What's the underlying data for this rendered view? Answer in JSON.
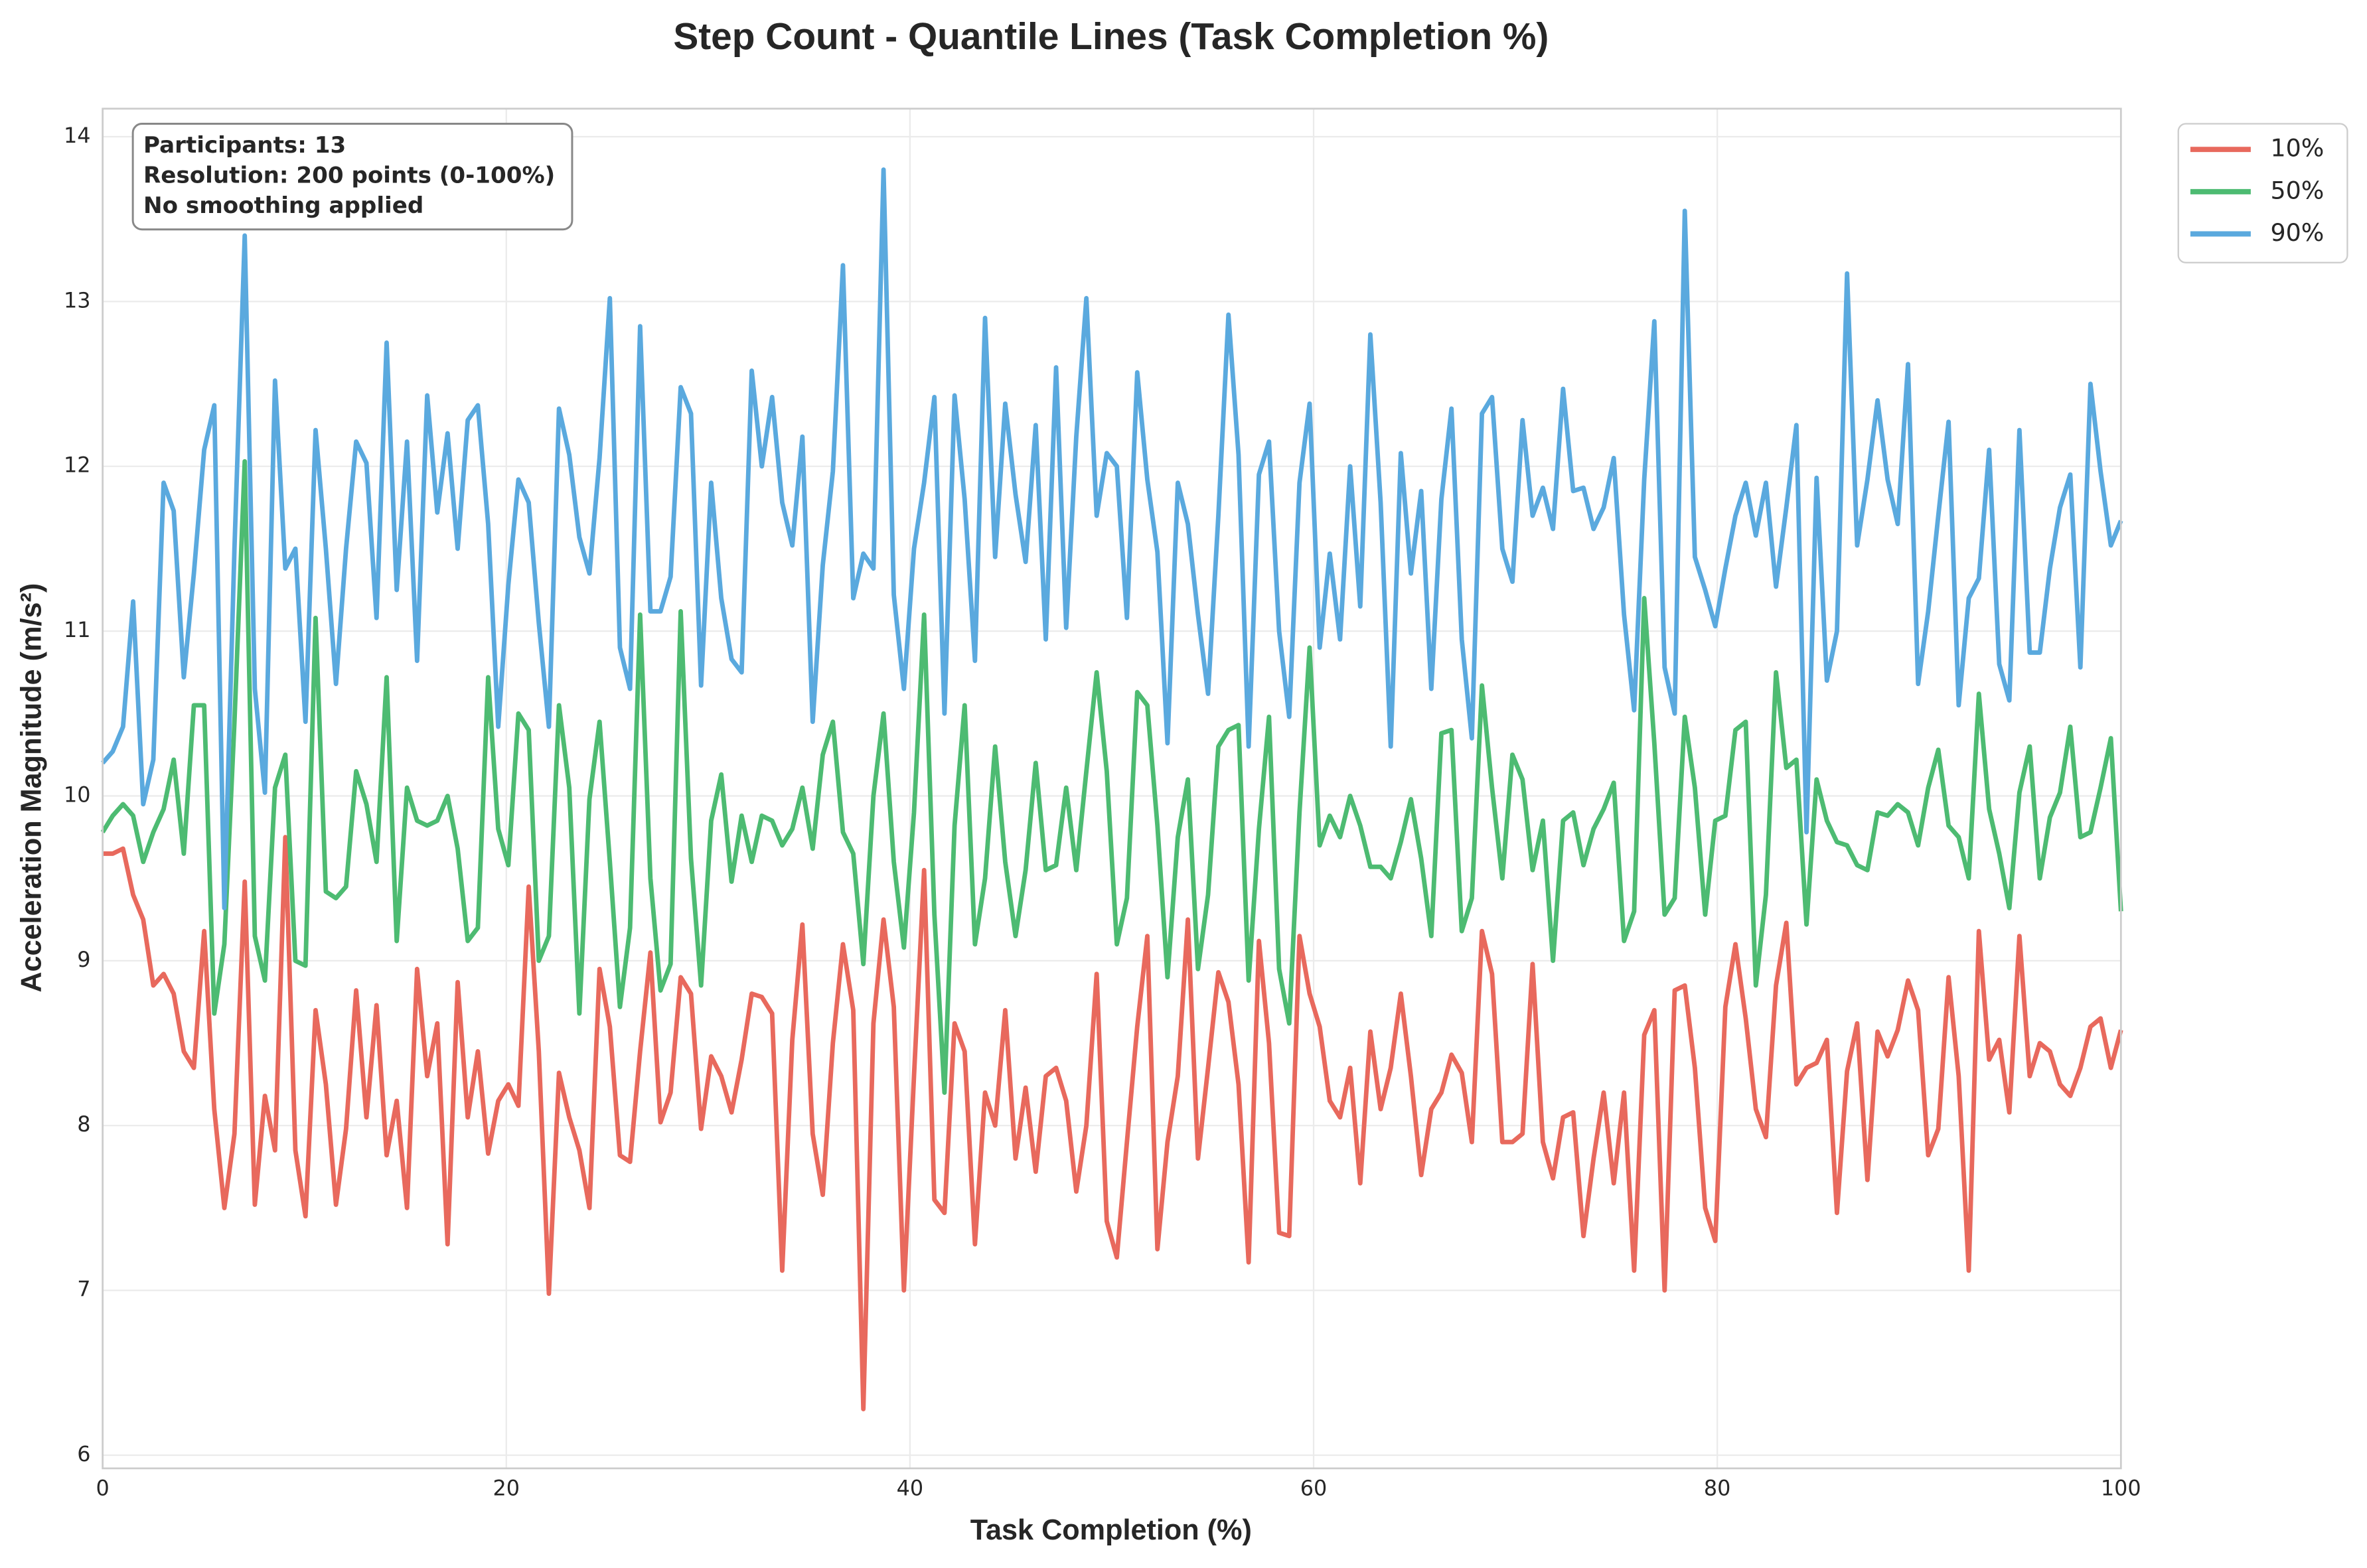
{
  "chart_data": {
    "type": "line",
    "title": "Step Count - Quantile Lines (Task Completion %)",
    "xlabel": "Task Completion (%)",
    "ylabel": "Acceleration Magnitude (m/s²)",
    "annotation": [
      "Participants: 13",
      "Resolution: 200 points (0-100%)",
      "No smoothing applied"
    ],
    "xlim": [
      0,
      100
    ],
    "xticks": [
      0,
      20,
      40,
      60,
      80,
      100
    ],
    "ylim": [
      5.92,
      14.17
    ],
    "yticks": [
      6,
      7,
      8,
      9,
      10,
      11,
      12,
      13,
      14
    ],
    "grid": true,
    "legend": "upper right outside",
    "x": [
      0,
      0.5,
      1.01,
      1.51,
      2.01,
      2.51,
      3.02,
      3.52,
      4.02,
      4.52,
      5.03,
      5.53,
      6.03,
      6.53,
      7.04,
      7.54,
      8.04,
      8.54,
      9.05,
      9.55,
      10.05,
      10.55,
      11.06,
      11.56,
      12.06,
      12.56,
      13.07,
      13.57,
      14.07,
      14.57,
      15.08,
      15.58,
      16.08,
      16.58,
      17.09,
      17.59,
      18.09,
      18.59,
      19.1,
      19.6,
      20.1,
      20.6,
      21.11,
      21.61,
      22.11,
      22.61,
      23.12,
      23.62,
      24.12,
      24.62,
      25.13,
      25.63,
      26.13,
      26.63,
      27.14,
      27.64,
      28.14,
      28.64,
      29.15,
      29.65,
      30.15,
      30.65,
      31.16,
      31.66,
      32.16,
      32.66,
      33.17,
      33.67,
      34.17,
      34.67,
      35.18,
      35.68,
      36.18,
      36.68,
      37.19,
      37.69,
      38.19,
      38.69,
      39.2,
      39.7,
      40.2,
      40.7,
      41.21,
      41.71,
      42.21,
      42.71,
      43.22,
      43.72,
      44.22,
      44.72,
      45.23,
      45.73,
      46.23,
      46.73,
      47.24,
      47.74,
      48.24,
      48.74,
      49.25,
      49.75,
      50.25,
      50.75,
      51.26,
      51.76,
      52.26,
      52.76,
      53.27,
      53.77,
      54.27,
      54.77,
      55.28,
      55.78,
      56.28,
      56.78,
      57.29,
      57.79,
      58.29,
      58.79,
      59.3,
      59.8,
      60.3,
      60.8,
      61.31,
      61.81,
      62.31,
      62.81,
      63.32,
      63.82,
      64.32,
      64.82,
      65.33,
      65.83,
      66.33,
      66.83,
      67.34,
      67.84,
      68.34,
      68.84,
      69.35,
      69.85,
      70.35,
      70.85,
      71.36,
      71.86,
      72.36,
      72.86,
      73.37,
      73.87,
      74.37,
      74.87,
      75.38,
      75.88,
      76.38,
      76.88,
      77.39,
      77.89,
      78.39,
      78.89,
      79.4,
      79.9,
      80.4,
      80.9,
      81.41,
      81.91,
      82.41,
      82.91,
      83.42,
      83.92,
      84.42,
      84.92,
      85.43,
      85.93,
      86.43,
      86.93,
      87.44,
      87.94,
      88.44,
      88.94,
      89.45,
      89.95,
      90.45,
      90.95,
      91.46,
      91.96,
      92.46,
      92.96,
      93.47,
      93.97,
      94.47,
      94.97,
      95.48,
      95.98,
      96.48,
      96.98,
      97.49,
      97.99,
      98.49,
      98.99,
      99.5,
      100
    ],
    "series": [
      {
        "name": "10%",
        "color": "#e8695d",
        "values": [
          9.65,
          9.65,
          9.68,
          9.4,
          9.25,
          8.85,
          8.92,
          8.8,
          8.45,
          8.35,
          9.18,
          8.1,
          7.5,
          7.95,
          9.48,
          7.52,
          8.18,
          7.85,
          9.75,
          7.85,
          7.45,
          8.7,
          8.25,
          7.52,
          7.98,
          8.82,
          8.05,
          8.73,
          7.82,
          8.15,
          7.5,
          8.95,
          8.3,
          8.62,
          7.28,
          8.87,
          8.05,
          8.45,
          7.83,
          8.15,
          8.25,
          8.12,
          9.45,
          8.45,
          6.98,
          8.32,
          8.05,
          7.85,
          7.5,
          8.95,
          8.6,
          7.82,
          7.78,
          8.45,
          9.05,
          8.02,
          8.2,
          8.9,
          8.8,
          7.98,
          8.42,
          8.3,
          8.08,
          8.4,
          8.8,
          8.78,
          8.68,
          7.12,
          8.52,
          9.22,
          7.95,
          7.58,
          8.5,
          9.1,
          8.7,
          6.28,
          8.62,
          9.25,
          8.72,
          7.0,
          8.3,
          9.55,
          7.55,
          7.47,
          8.62,
          8.45,
          7.28,
          8.2,
          8.0,
          8.7,
          7.8,
          8.23,
          7.72,
          8.3,
          8.35,
          8.15,
          7.6,
          8.0,
          8.92,
          7.42,
          7.2,
          7.9,
          8.6,
          9.15,
          7.25,
          7.9,
          8.3,
          9.25,
          7.8,
          8.35,
          8.93,
          8.75,
          8.25,
          7.17,
          9.12,
          8.5,
          7.35,
          7.33,
          9.15,
          8.8,
          8.6,
          8.15,
          8.05,
          8.35,
          7.65,
          8.57,
          8.1,
          8.35,
          8.8,
          8.3,
          7.7,
          8.1,
          8.2,
          8.43,
          8.32,
          7.9,
          9.18,
          8.92,
          7.9,
          7.9,
          7.95,
          8.98,
          7.9,
          7.68,
          8.05,
          8.08,
          7.33,
          7.8,
          8.2,
          7.65,
          8.2,
          7.12,
          8.55,
          8.7,
          7.0,
          8.82,
          8.85,
          8.35,
          7.5,
          7.3,
          8.72,
          9.1,
          8.65,
          8.1,
          7.93,
          8.85,
          9.23,
          8.25,
          8.35,
          8.38,
          8.52,
          7.47,
          8.33,
          8.62,
          7.67,
          8.57,
          8.42,
          8.58,
          8.88,
          8.7,
          7.82,
          7.98,
          8.9,
          8.3,
          7.12,
          9.18,
          8.4,
          8.52,
          8.08,
          9.15,
          8.3,
          8.5,
          8.45,
          8.25,
          8.18,
          8.35,
          8.6,
          8.65,
          8.35,
          8.58
        ]
      },
      {
        "name": "50%",
        "color": "#4dbb72",
        "values": [
          9.78,
          9.88,
          9.95,
          9.88,
          9.6,
          9.78,
          9.92,
          10.22,
          9.65,
          10.55,
          10.55,
          8.68,
          9.1,
          10.45,
          12.03,
          9.15,
          8.88,
          10.05,
          10.25,
          9.0,
          8.97,
          11.08,
          9.42,
          9.38,
          9.45,
          10.15,
          9.95,
          9.6,
          10.72,
          9.12,
          10.05,
          9.85,
          9.82,
          9.85,
          10.0,
          9.68,
          9.12,
          9.2,
          10.72,
          9.8,
          9.58,
          10.5,
          10.4,
          9.0,
          9.15,
          10.55,
          10.05,
          8.68,
          9.98,
          10.45,
          9.6,
          8.72,
          9.2,
          11.1,
          9.5,
          8.82,
          8.98,
          11.12,
          9.62,
          8.85,
          9.85,
          10.13,
          9.48,
          9.88,
          9.6,
          9.88,
          9.85,
          9.7,
          9.8,
          10.05,
          9.68,
          10.25,
          10.45,
          9.78,
          9.65,
          8.98,
          10.0,
          10.5,
          9.6,
          9.08,
          9.9,
          11.1,
          9.28,
          8.2,
          9.82,
          10.55,
          9.1,
          9.5,
          10.3,
          9.6,
          9.15,
          9.55,
          10.2,
          9.55,
          9.58,
          10.05,
          9.55,
          10.15,
          10.75,
          10.15,
          9.1,
          9.38,
          10.63,
          10.55,
          9.82,
          8.9,
          9.75,
          10.1,
          8.95,
          9.4,
          10.3,
          10.4,
          10.43,
          8.88,
          9.8,
          10.48,
          8.95,
          8.62,
          9.9,
          10.9,
          9.7,
          9.88,
          9.75,
          10.0,
          9.82,
          9.57,
          9.57,
          9.5,
          9.72,
          9.98,
          9.62,
          9.15,
          10.38,
          10.4,
          9.18,
          9.38,
          10.67,
          10.05,
          9.5,
          10.25,
          10.1,
          9.55,
          9.85,
          9.0,
          9.85,
          9.9,
          9.58,
          9.8,
          9.92,
          10.08,
          9.12,
          9.3,
          11.2,
          10.32,
          9.28,
          9.38,
          10.48,
          10.05,
          9.28,
          9.85,
          9.88,
          10.4,
          10.45,
          8.85,
          9.4,
          10.75,
          10.17,
          10.22,
          9.22,
          10.1,
          9.85,
          9.72,
          9.7,
          9.58,
          9.55,
          9.9,
          9.88,
          9.95,
          9.9,
          9.7,
          10.05,
          10.28,
          9.82,
          9.75,
          9.5,
          10.62,
          9.92,
          9.65,
          9.32,
          10.02,
          10.3,
          9.5,
          9.87,
          10.02,
          10.42,
          9.75,
          9.78,
          10.05,
          10.35,
          9.3
        ]
      },
      {
        "name": "90%",
        "color": "#5aa9de",
        "values": [
          10.2,
          10.27,
          10.42,
          11.18,
          9.95,
          10.22,
          11.9,
          11.73,
          10.72,
          11.35,
          12.1,
          12.37,
          9.32,
          11.5,
          13.4,
          10.65,
          10.02,
          12.52,
          11.38,
          11.5,
          10.45,
          12.22,
          11.5,
          10.68,
          11.5,
          12.15,
          12.02,
          11.08,
          12.75,
          11.25,
          12.15,
          10.82,
          12.43,
          11.72,
          12.2,
          11.5,
          12.28,
          12.37,
          11.65,
          10.42,
          11.28,
          11.92,
          11.78,
          11.05,
          10.42,
          12.35,
          12.07,
          11.57,
          11.35,
          12.05,
          13.02,
          10.9,
          10.65,
          12.85,
          11.12,
          11.12,
          11.33,
          12.48,
          12.32,
          10.67,
          11.9,
          11.2,
          10.83,
          10.75,
          12.58,
          12.0,
          12.42,
          11.78,
          11.52,
          12.18,
          10.45,
          11.4,
          11.97,
          13.22,
          11.2,
          11.47,
          11.38,
          13.8,
          11.22,
          10.65,
          11.5,
          11.9,
          12.42,
          10.5,
          12.43,
          11.8,
          10.82,
          12.9,
          11.45,
          12.38,
          11.83,
          11.42,
          12.25,
          10.95,
          12.6,
          11.02,
          12.18,
          13.02,
          11.7,
          12.08,
          12.0,
          11.08,
          12.57,
          11.92,
          11.48,
          10.32,
          11.9,
          11.65,
          11.1,
          10.62,
          11.7,
          12.92,
          12.07,
          10.3,
          11.95,
          12.15,
          11.0,
          10.48,
          11.9,
          12.38,
          10.9,
          11.47,
          10.95,
          12.0,
          11.15,
          12.8,
          11.78,
          10.3,
          12.08,
          11.35,
          11.85,
          10.65,
          11.8,
          12.35,
          10.95,
          10.35,
          12.32,
          12.42,
          11.5,
          11.3,
          12.28,
          11.7,
          11.87,
          11.62,
          12.47,
          11.85,
          11.87,
          11.62,
          11.75,
          12.05,
          11.1,
          10.52,
          11.92,
          12.88,
          10.78,
          10.5,
          13.55,
          11.45,
          11.25,
          11.03,
          11.38,
          11.7,
          11.9,
          11.58,
          11.9,
          11.27,
          11.75,
          12.25,
          9.78,
          11.93,
          10.7,
          11.0,
          13.17,
          11.52,
          11.92,
          12.4,
          11.92,
          11.65,
          12.62,
          10.68,
          11.12,
          11.7,
          12.27,
          10.55,
          11.2,
          11.32,
          12.1,
          10.8,
          10.58,
          12.22,
          10.87,
          10.87,
          11.38,
          11.75,
          11.95,
          10.78,
          12.5,
          11.97,
          11.52,
          11.67
        ]
      }
    ]
  }
}
